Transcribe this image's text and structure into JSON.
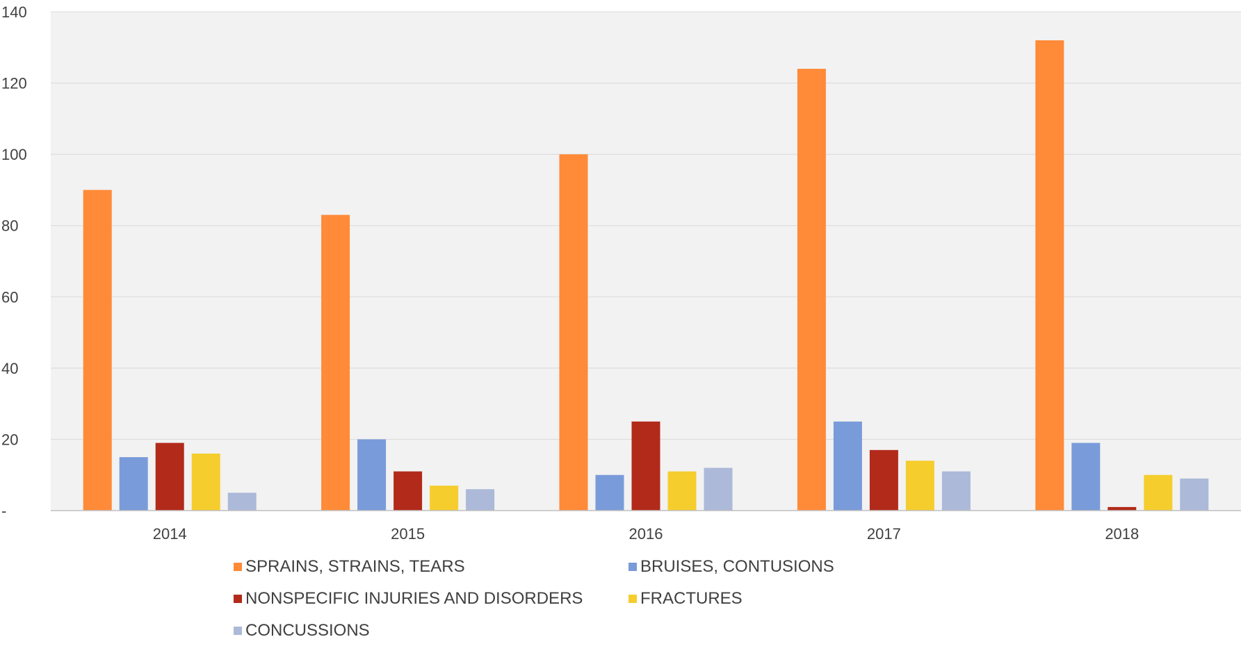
{
  "chart_data": {
    "type": "bar",
    "title": "",
    "xlabel": "",
    "ylabel": "",
    "categories": [
      "2014",
      "2015",
      "2016",
      "2017",
      "2018"
    ],
    "ylim": [
      0,
      140
    ],
    "yticks": [
      {
        "value": 0,
        "label": "-"
      },
      {
        "value": 20,
        "label": "20"
      },
      {
        "value": 40,
        "label": "40"
      },
      {
        "value": 60,
        "label": "60"
      },
      {
        "value": 80,
        "label": "80"
      },
      {
        "value": 100,
        "label": "100"
      },
      {
        "value": 120,
        "label": "120"
      },
      {
        "value": 140,
        "label": "140"
      }
    ],
    "grid": true,
    "legend_position": "bottom",
    "plot_background": "#f2f2f2",
    "series": [
      {
        "name": "SPRAINS, STRAINS, TEARS",
        "color": "#ff8a38",
        "values": [
          90,
          83,
          100,
          124,
          132
        ]
      },
      {
        "name": "BRUISES, CONTUSIONS",
        "color": "#7a9bd9",
        "values": [
          15,
          20,
          10,
          25,
          19
        ]
      },
      {
        "name": "NONSPECIFIC INJURIES AND DISORDERS",
        "color": "#b22a1a",
        "values": [
          19,
          11,
          25,
          17,
          1
        ]
      },
      {
        "name": "FRACTURES",
        "color": "#f5cd2d",
        "values": [
          16,
          7,
          11,
          14,
          10
        ]
      },
      {
        "name": "CONCUSSIONS",
        "color": "#acb9d8",
        "values": [
          5,
          6,
          12,
          11,
          9
        ]
      }
    ]
  }
}
